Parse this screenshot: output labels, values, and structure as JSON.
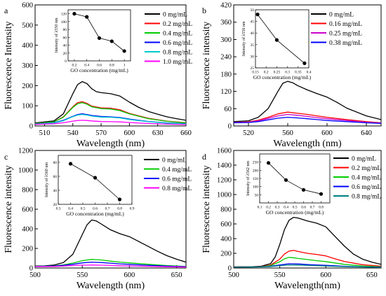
{
  "chart_data": [
    {
      "panel": "a",
      "type": "line",
      "xlabel": "Wavelength (nm)",
      "ylabel": "Fluorescence Intensity",
      "xlim": [
        500,
        660
      ],
      "ylim": [
        0,
        600
      ],
      "xticks": [
        510,
        540,
        570,
        600,
        630,
        660
      ],
      "yticks": [
        0,
        100,
        200,
        300,
        400,
        500,
        600
      ],
      "legend_position": "top-right",
      "series": [
        {
          "name": "0   mg/mL",
          "color": "#000000",
          "x": [
            500,
            520,
            530,
            540,
            545,
            550,
            555,
            560,
            565,
            570,
            580,
            590,
            600,
            610,
            620,
            630,
            640,
            650,
            660
          ],
          "y": [
            15,
            25,
            60,
            160,
            205,
            220,
            210,
            185,
            170,
            165,
            160,
            148,
            118,
            92,
            72,
            58,
            45,
            36,
            28
          ]
        },
        {
          "name": "0.2 mg/mL",
          "color": "#ff0000",
          "x": [
            500,
            520,
            530,
            540,
            545,
            550,
            555,
            560,
            570,
            580,
            590,
            600,
            620,
            640,
            660
          ],
          "y": [
            12,
            20,
            45,
            95,
            115,
            120,
            112,
            98,
            90,
            88,
            80,
            62,
            38,
            24,
            16
          ]
        },
        {
          "name": "0.4 mg/mL",
          "color": "#00cc00",
          "x": [
            500,
            520,
            530,
            540,
            545,
            550,
            555,
            560,
            570,
            580,
            590,
            600,
            620,
            640,
            660
          ],
          "y": [
            12,
            20,
            43,
            92,
            110,
            115,
            108,
            95,
            86,
            84,
            76,
            60,
            36,
            23,
            15
          ]
        },
        {
          "name": "0.6 mg/mL",
          "color": "#0000ff",
          "x": [
            500,
            520,
            530,
            540,
            545,
            550,
            555,
            560,
            570,
            580,
            590,
            600,
            620,
            640,
            660
          ],
          "y": [
            10,
            16,
            28,
            48,
            57,
            60,
            57,
            52,
            47,
            45,
            42,
            34,
            22,
            15,
            11
          ]
        },
        {
          "name": "0.8 mg/mL",
          "color": "#00cccc",
          "x": [
            500,
            520,
            530,
            540,
            545,
            550,
            555,
            560,
            570,
            580,
            590,
            600,
            620,
            640,
            660
          ],
          "y": [
            10,
            15,
            26,
            46,
            54,
            57,
            54,
            49,
            44,
            43,
            40,
            32,
            21,
            14,
            10
          ]
        },
        {
          "name": "1.0 mg/mL",
          "color": "#ff00ff",
          "x": [
            500,
            520,
            530,
            540,
            545,
            550,
            555,
            560,
            570,
            580,
            590,
            600,
            620,
            640,
            660
          ],
          "y": [
            8,
            11,
            16,
            24,
            27,
            28,
            27,
            25,
            22,
            21,
            20,
            17,
            12,
            9,
            7
          ]
        }
      ],
      "inset": {
        "xlabel": "GO concentration (mg/mL)",
        "ylabel": "Intensity of λ550 nm",
        "xlim": [
          0.1,
          1.1
        ],
        "ylim": [
          0,
          130
        ],
        "xticks": [
          0.2,
          0.4,
          0.6,
          0.8,
          1.0
        ],
        "yticks": [
          0,
          20,
          40,
          60,
          80,
          100,
          120
        ],
        "x": [
          0.2,
          0.4,
          0.6,
          0.8,
          1.0
        ],
        "y": [
          120,
          112,
          58,
          50,
          25
        ]
      }
    },
    {
      "panel": "b",
      "type": "line",
      "xlabel": "Wavelength (nm)",
      "ylabel": "Fluorescence intensity",
      "xlim": [
        505,
        655
      ],
      "ylim": [
        0,
        420
      ],
      "xticks": [
        520,
        560,
        600,
        640
      ],
      "yticks": [
        0,
        60,
        120,
        180,
        240,
        300,
        360,
        420
      ],
      "legend_position": "top-right",
      "series": [
        {
          "name": "0 mg/mL",
          "color": "#000000",
          "x": [
            505,
            520,
            530,
            540,
            550,
            555,
            560,
            565,
            570,
            580,
            590,
            600,
            610,
            620,
            640,
            655
          ],
          "y": [
            15,
            18,
            30,
            60,
            120,
            148,
            155,
            150,
            140,
            125,
            112,
            100,
            82,
            62,
            35,
            22
          ]
        },
        {
          "name": "0.16 mg/mL",
          "color": "#ff0000",
          "x": [
            505,
            520,
            530,
            540,
            550,
            560,
            570,
            580,
            590,
            600,
            620,
            640,
            655
          ],
          "y": [
            12,
            14,
            20,
            30,
            42,
            48,
            44,
            40,
            35,
            30,
            22,
            15,
            11
          ]
        },
        {
          "name": "0.25 mg/mL",
          "color": "#cc00cc",
          "x": [
            505,
            520,
            530,
            540,
            550,
            560,
            570,
            580,
            590,
            600,
            620,
            640,
            655
          ],
          "y": [
            12,
            13,
            18,
            26,
            35,
            40,
            37,
            33,
            29,
            25,
            19,
            13,
            10
          ]
        },
        {
          "name": "0.38 mg/mL",
          "color": "#0000ff",
          "x": [
            505,
            520,
            530,
            540,
            550,
            560,
            570,
            580,
            590,
            600,
            620,
            640,
            655
          ],
          "y": [
            11,
            12,
            15,
            21,
            27,
            30,
            28,
            25,
            22,
            19,
            15,
            11,
            9
          ]
        }
      ],
      "inset": {
        "xlabel": "GO concentration (mg/mL)",
        "ylabel": "Intensity of λ556 nm",
        "xlim": [
          0.15,
          0.4
        ],
        "ylim": [
          25,
          50
        ],
        "xticks": [
          0.15,
          0.2,
          0.25,
          0.3,
          0.35,
          0.4
        ],
        "yticks": [
          25,
          30,
          35,
          40,
          45,
          50
        ],
        "x": [
          0.16,
          0.25,
          0.38
        ],
        "y": [
          48,
          37,
          27
        ]
      }
    },
    {
      "panel": "c",
      "type": "line",
      "xlabel": "Wavelength (nm)",
      "ylabel": "Fluorescence intensity",
      "xlim": [
        500,
        660
      ],
      "ylim": [
        0,
        1200
      ],
      "xticks": [
        500,
        550,
        600,
        650
      ],
      "yticks": [
        0,
        200,
        400,
        600,
        800,
        1000,
        1200
      ],
      "legend_position": "top-right",
      "series": [
        {
          "name": "0   mg/mL",
          "color": "#000000",
          "x": [
            500,
            510,
            520,
            530,
            540,
            550,
            555,
            560,
            565,
            570,
            580,
            590,
            600,
            610,
            620,
            630,
            640,
            650,
            660
          ],
          "y": [
            20,
            22,
            30,
            55,
            140,
            340,
            440,
            490,
            480,
            450,
            390,
            350,
            320,
            270,
            220,
            170,
            125,
            90,
            60
          ]
        },
        {
          "name": "0.4 mg/mL",
          "color": "#00cc00",
          "x": [
            500,
            520,
            530,
            540,
            550,
            560,
            570,
            580,
            590,
            600,
            620,
            640,
            660
          ],
          "y": [
            18,
            22,
            32,
            50,
            75,
            88,
            82,
            70,
            60,
            52,
            38,
            25,
            16
          ]
        },
        {
          "name": "0.6 mg/mL",
          "color": "#0000ff",
          "x": [
            500,
            520,
            530,
            540,
            550,
            560,
            570,
            580,
            590,
            600,
            620,
            640,
            660
          ],
          "y": [
            16,
            20,
            27,
            38,
            52,
            60,
            56,
            49,
            42,
            37,
            28,
            19,
            13
          ]
        },
        {
          "name": "0.8 mg/mL",
          "color": "#ff00ff",
          "x": [
            500,
            520,
            530,
            540,
            550,
            560,
            570,
            580,
            590,
            600,
            620,
            640,
            660
          ],
          "y": [
            14,
            16,
            20,
            25,
            29,
            31,
            29,
            26,
            23,
            21,
            17,
            13,
            10
          ]
        }
      ],
      "inset": {
        "xlabel": "GO concentration (mg/mL)",
        "ylabel": "Intensity of λ560 nm",
        "xlim": [
          0.3,
          0.9
        ],
        "ylim": [
          20,
          90
        ],
        "xticks": [
          0.3,
          0.4,
          0.5,
          0.6,
          0.7,
          0.8,
          0.9
        ],
        "yticks": [
          20,
          40,
          60,
          80
        ],
        "x": [
          0.4,
          0.6,
          0.8
        ],
        "y": [
          78,
          58,
          27
        ]
      }
    },
    {
      "panel": "d",
      "type": "line",
      "xlabel": "Wavelength(nm)",
      "ylabel": "Fluorescence intensity",
      "xlim": [
        500,
        660
      ],
      "ylim": [
        0,
        1600
      ],
      "xticks": [
        500,
        550,
        600,
        650
      ],
      "yticks": [
        0,
        200,
        400,
        600,
        800,
        1000,
        1200,
        1400,
        1600
      ],
      "legend_position": "top-right",
      "series": [
        {
          "name": "0   mg/mL",
          "color": "#000000",
          "x": [
            500,
            520,
            530,
            540,
            545,
            550,
            555,
            560,
            565,
            570,
            580,
            590,
            600,
            610,
            620,
            630,
            640,
            650,
            660
          ],
          "y": [
            15,
            18,
            25,
            60,
            150,
            320,
            520,
            650,
            690,
            680,
            640,
            610,
            560,
            430,
            300,
            190,
            120,
            80,
            50
          ]
        },
        {
          "name": "0.2 mg/mL",
          "color": "#ff0000",
          "x": [
            500,
            520,
            530,
            540,
            550,
            555,
            560,
            565,
            570,
            580,
            590,
            600,
            610,
            620,
            640,
            660
          ],
          "y": [
            14,
            16,
            20,
            40,
            120,
            190,
            230,
            240,
            225,
            200,
            185,
            165,
            125,
            90,
            45,
            25
          ]
        },
        {
          "name": "0.4 mg/mL",
          "color": "#00cc00",
          "x": [
            500,
            520,
            530,
            540,
            550,
            555,
            560,
            565,
            570,
            580,
            590,
            600,
            620,
            640,
            660
          ],
          "y": [
            13,
            15,
            18,
            32,
            85,
            125,
            145,
            140,
            130,
            115,
            100,
            88,
            50,
            28,
            16
          ]
        },
        {
          "name": "0.6 mg/mL",
          "color": "#0000ff",
          "x": [
            500,
            520,
            530,
            540,
            550,
            560,
            570,
            580,
            590,
            600,
            620,
            640,
            660
          ],
          "y": [
            12,
            14,
            16,
            24,
            42,
            58,
            55,
            48,
            42,
            37,
            24,
            15,
            11
          ]
        },
        {
          "name": "0.8 mg/mL",
          "color": "#008080",
          "x": [
            500,
            520,
            530,
            540,
            550,
            560,
            570,
            580,
            590,
            600,
            620,
            640,
            660
          ],
          "y": [
            11,
            13,
            15,
            20,
            32,
            42,
            40,
            36,
            32,
            28,
            19,
            13,
            9
          ]
        }
      ],
      "inset": {
        "xlabel": "GO concentration (mg/mL)",
        "ylabel": "Intensity of λ562 nm",
        "xlim": [
          0.1,
          0.9
        ],
        "ylim": [
          0,
          300
        ],
        "xticks": [
          0.1,
          0.2,
          0.3,
          0.4,
          0.5,
          0.6,
          0.7,
          0.8
        ],
        "yticks": [
          50,
          100,
          150,
          200,
          250
        ],
        "x": [
          0.2,
          0.4,
          0.6,
          0.8
        ],
        "y": [
          245,
          140,
          80,
          55
        ]
      }
    }
  ]
}
